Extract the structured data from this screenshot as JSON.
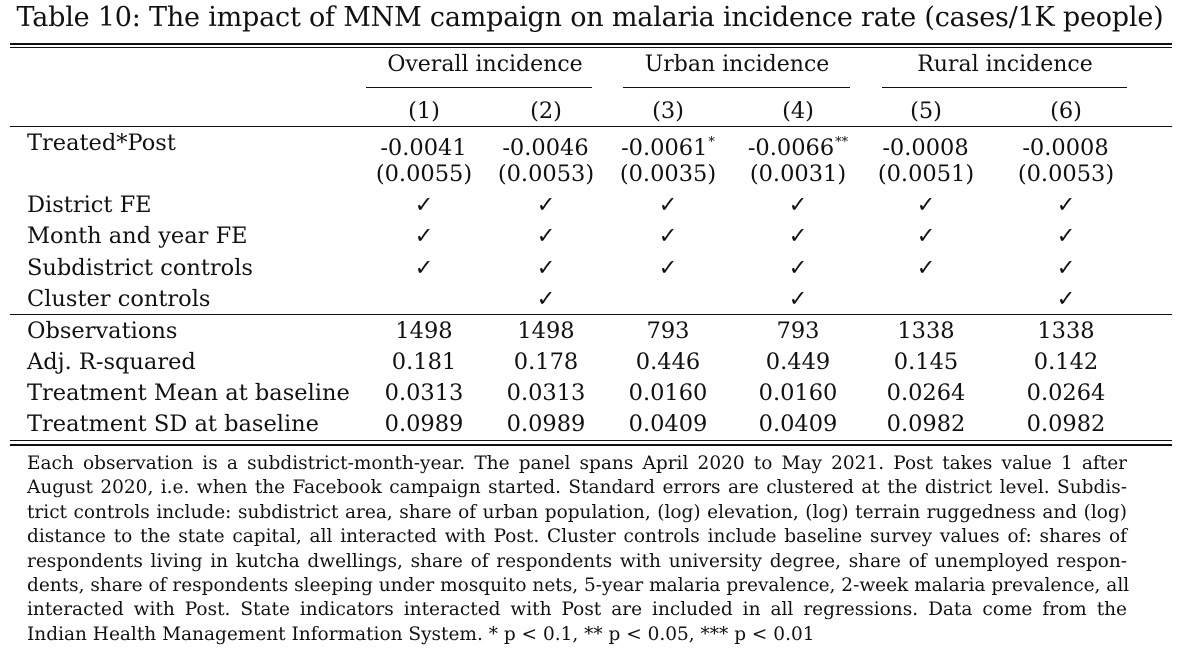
{
  "caption": "Table 10: The impact of MNM campaign on malaria incidence rate (cases/1K people)",
  "groups": [
    "Overall incidence",
    "Urban incidence",
    "Rural incidence"
  ],
  "col_numbers": [
    "(1)",
    "(2)",
    "(3)",
    "(4)",
    "(5)",
    "(6)"
  ],
  "treated_post": {
    "label": "Treated*Post",
    "coefs": [
      "-0.0041",
      "-0.0046",
      "-0.0061",
      "-0.0066",
      "-0.0008",
      "-0.0008"
    ],
    "stars": [
      "",
      "",
      "*",
      "**",
      "",
      ""
    ],
    "ses": [
      "(0.0055)",
      "(0.0053)",
      "(0.0035)",
      "(0.0031)",
      "(0.0051)",
      "(0.0053)"
    ]
  },
  "controls": [
    {
      "label": "District FE",
      "marks": [
        "✓",
        "✓",
        "✓",
        "✓",
        "✓",
        "✓"
      ]
    },
    {
      "label": "Month and year FE",
      "marks": [
        "✓",
        "✓",
        "✓",
        "✓",
        "✓",
        "✓"
      ]
    },
    {
      "label": "Subdistrict controls",
      "marks": [
        "✓",
        "✓",
        "✓",
        "✓",
        "✓",
        "✓"
      ]
    },
    {
      "label": "Cluster controls",
      "marks": [
        "",
        "✓",
        "",
        "✓",
        "",
        "✓"
      ]
    }
  ],
  "stats": [
    {
      "label": "Observations",
      "values": [
        "1498",
        "1498",
        "793",
        "793",
        "1338",
        "1338"
      ]
    },
    {
      "label": "Adj. R-squared",
      "values": [
        "0.181",
        "0.178",
        "0.446",
        "0.449",
        "0.145",
        "0.142"
      ]
    },
    {
      "label": "Treatment Mean at baseline",
      "values": [
        "0.0313",
        "0.0313",
        "0.0160",
        "0.0160",
        "0.0264",
        "0.0264"
      ]
    },
    {
      "label": "Treatment SD at baseline",
      "values": [
        "0.0989",
        "0.0989",
        "0.0409",
        "0.0409",
        "0.0982",
        "0.0982"
      ]
    }
  ],
  "note_lines": [
    "Each observation is a subdistrict-month-year. The panel spans April 2020 to May 2021. Post takes value 1 after",
    "August 2020, i.e. when the Facebook campaign started. Standard errors are clustered at the district level. Subdis-",
    "trict controls include: subdistrict area, share of urban population, (log) elevation, (log) terrain ruggedness and (log)",
    "distance to the state capital, all interacted with Post. Cluster controls include baseline survey values of: shares of",
    "respondents living in kutcha dwellings, share of respondents with university degree, share of unemployed respon-",
    "dents, share of respondents sleeping under mosquito nets, 5-year malaria prevalence, 2-week malaria prevalence, all",
    "interacted with Post. State indicators interacted with Post are included in all regressions. Data come from the",
    "Indian Health Management Information System. * p < 0.1, ** p < 0.05, *** p < 0.01"
  ]
}
